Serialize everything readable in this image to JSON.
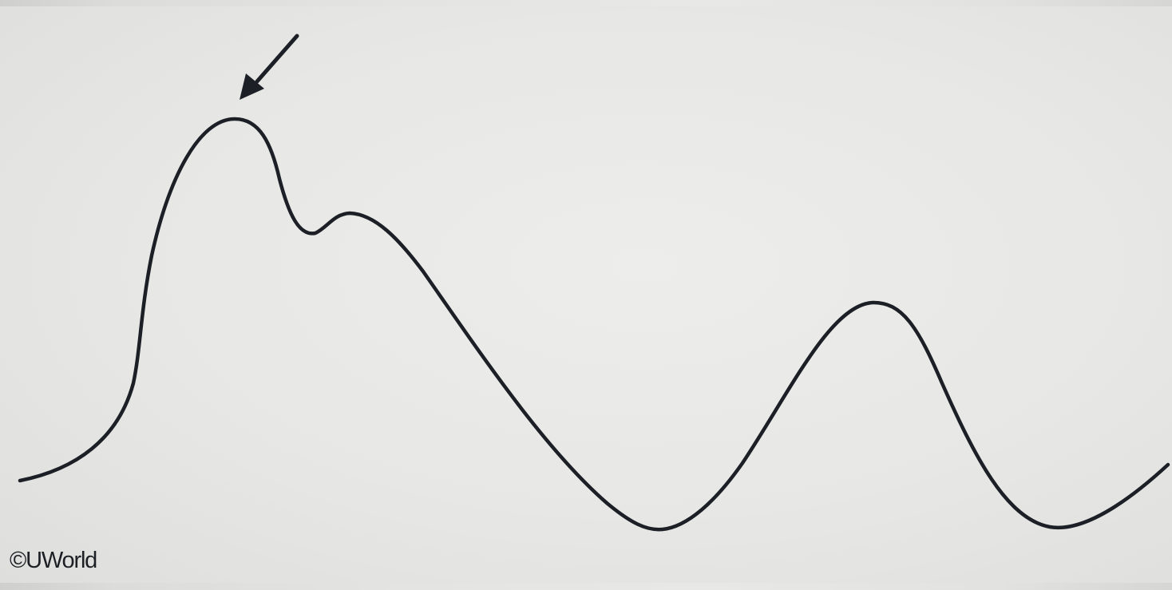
{
  "figure": {
    "kind": "waveform-diagram",
    "stroke_color": "#1c2026",
    "background_color": "#e6e6e4",
    "annotation": {
      "icon": "arrow-icon",
      "points_to": "first-peak"
    }
  },
  "copyright": {
    "text": "©UWorld"
  }
}
